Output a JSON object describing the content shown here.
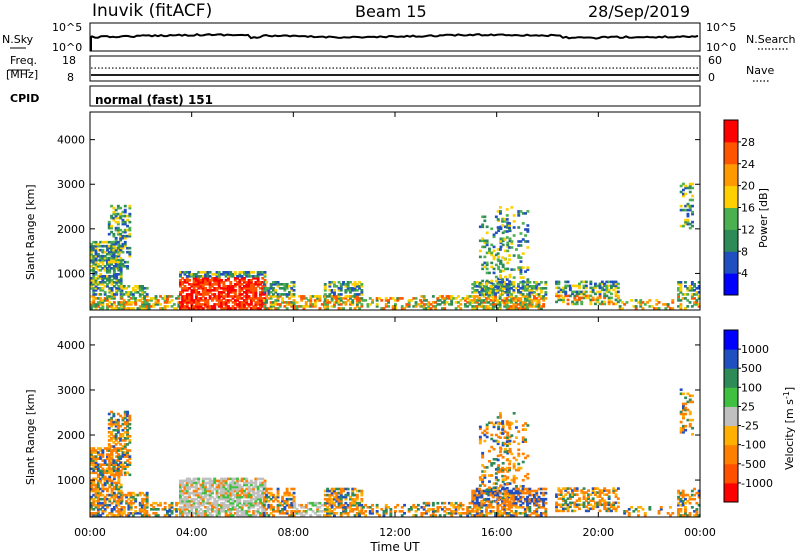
{
  "header": {
    "station": "Inuvik (fitACF)",
    "beam": "Beam 15",
    "date": "28/Sep/2019"
  },
  "nsky_panel": {
    "left_label": "N.Sky",
    "right_label": "N.Search",
    "left_ticks": [
      "10^5",
      "10^0"
    ],
    "right_ticks": [
      "10^5",
      "10^0"
    ]
  },
  "freq_panel": {
    "left_label_line1": "Freq.",
    "left_label_line2": "[MHz]",
    "right_label": "Nave",
    "left_ticks": [
      "18",
      "8"
    ],
    "right_ticks": [
      "60",
      "0"
    ],
    "freq_level_mhz": 10.4,
    "nave_level": 31
  },
  "cpid": {
    "label": "CPID",
    "value": "normal (fast) 151"
  },
  "chart_data": [
    {
      "type": "heatmap",
      "title": "",
      "ylabel": "Slant Range [km]",
      "xlabel": "",
      "ylim": [
        180,
        4620
      ],
      "y_ticks": [
        "1000",
        "2000",
        "3000",
        "4000"
      ],
      "colorbar": {
        "label": "Power [dB]",
        "ticks": [
          "4",
          "8",
          "12",
          "16",
          "20",
          "24",
          "28"
        ],
        "colors": [
          "#0000ff",
          "#2050c0",
          "#2e8b57",
          "#4caf50",
          "#ffd000",
          "#ff9900",
          "#ff5500",
          "#ff0000"
        ]
      }
    },
    {
      "type": "heatmap",
      "title": "",
      "ylabel": "Slant Range [km]",
      "xlabel": "Time UT",
      "ylim": [
        180,
        4620
      ],
      "y_ticks": [
        "1000",
        "2000",
        "3000",
        "4000"
      ],
      "x_ticks": [
        "00:00",
        "04:00",
        "08:00",
        "12:00",
        "16:00",
        "20:00",
        "00:00"
      ],
      "colorbar": {
        "label": "Velocity [m s",
        "label_sup": "-1",
        "label_close": "]",
        "ticks": [
          "1000",
          "500",
          "100",
          "25",
          "-25",
          "-100",
          "-500",
          "-1000"
        ],
        "colors": [
          "#0000ff",
          "#2050c0",
          "#2e8b57",
          "#40c040",
          "#c0c0c0",
          "#ffb000",
          "#ff8000",
          "#ff5000",
          "#ff0000"
        ]
      }
    }
  ]
}
